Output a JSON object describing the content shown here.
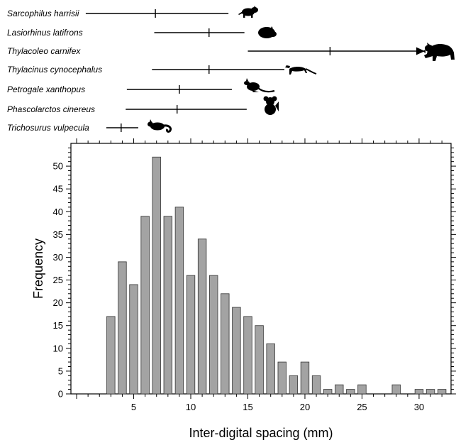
{
  "chart_data": [
    {
      "type": "range",
      "x_scale": "shared with histogram (Inter-digital spacing, mm)",
      "series": [
        {
          "name": "Sarcophilus harrisii",
          "min": 0.8,
          "mean": 6.9,
          "max": 13.3,
          "arrow": false,
          "silhouette": "devil"
        },
        {
          "name": "Lasiorhinus latifrons",
          "min": 6.8,
          "mean": 11.6,
          "max": 14.7,
          "arrow": false,
          "silhouette": "wombat"
        },
        {
          "name": "Thylacoleo carnifex",
          "min": 15.0,
          "mean": 22.2,
          "max": 30.5,
          "arrow": true,
          "silhouette": "marsupial-lion"
        },
        {
          "name": "Thylacinus cynocephalus",
          "min": 6.6,
          "mean": 11.6,
          "max": 18.2,
          "arrow": false,
          "silhouette": "thylacine"
        },
        {
          "name": "Petrogale xanthopus",
          "min": 4.4,
          "mean": 9.0,
          "max": 13.6,
          "arrow": false,
          "silhouette": "rock-wallaby"
        },
        {
          "name": "Phascolarctos cinereus",
          "min": 4.3,
          "mean": 8.8,
          "max": 14.9,
          "arrow": false,
          "silhouette": "koala"
        },
        {
          "name": "Trichosurus vulpecula",
          "min": 2.6,
          "mean": 3.9,
          "max": 5.4,
          "arrow": false,
          "silhouette": "possum"
        }
      ]
    },
    {
      "type": "bar",
      "xlabel": "Inter-digital spacing (mm)",
      "ylabel": "Frequency",
      "xlim": [
        -0.5,
        32.8
      ],
      "ylim": [
        0,
        55
      ],
      "x": [
        3,
        4,
        5,
        6,
        7,
        8,
        9,
        10,
        11,
        12,
        13,
        14,
        15,
        16,
        17,
        18,
        19,
        20,
        21,
        22,
        23,
        24,
        25,
        26,
        27,
        28,
        29,
        30,
        31,
        32
      ],
      "values": [
        17,
        29,
        24,
        39,
        52,
        39,
        41,
        26,
        34,
        26,
        22,
        19,
        17,
        15,
        11,
        7,
        4,
        7,
        4,
        1,
        2,
        1,
        2,
        0,
        0,
        2,
        0,
        1,
        1,
        1
      ],
      "x_ticks": [
        5,
        10,
        15,
        20,
        25,
        30
      ],
      "y_ticks": [
        0,
        5,
        10,
        15,
        20,
        25,
        30,
        35,
        40,
        45,
        50
      ],
      "bar_color": "#a3a3a3",
      "grid": false
    }
  ]
}
